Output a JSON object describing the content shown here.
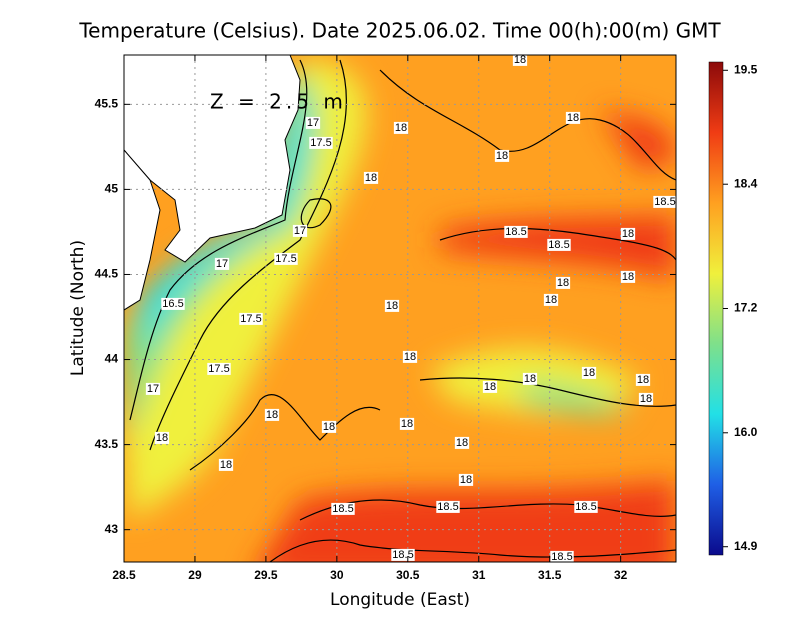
{
  "chart_data": {
    "type": "map",
    "title": "Temperature (Celsius). Date 2025.06.02. Time 00(h):00(m) GMT",
    "annotation": "Z = 2.5 m",
    "x_label": "Longitude (East)",
    "y_label": "Latitude (North)",
    "xlim": [
      28.5,
      32.39
    ],
    "ylim": [
      42.81,
      45.79
    ],
    "xticks": [
      28.5,
      29,
      29.5,
      30,
      30.5,
      31,
      31.5,
      32
    ],
    "yticks": [
      43,
      43.5,
      44,
      44.5,
      45,
      45.5
    ],
    "grid": true,
    "colorbar": {
      "lim": [
        14.82,
        19.58
      ],
      "ticks": [
        14.9,
        {
          "value": 16,
          "label": "16.0"
        },
        17.2,
        18.4,
        19.5
      ],
      "colors": [
        "#0a0a8c",
        "#1f5fe6",
        "#22e0e6",
        "#7fe08a",
        "#f0f03c",
        "#ffa020",
        "#f03c14",
        "#8c0a0a"
      ]
    },
    "contour_labels": [
      "18",
      "18",
      "18",
      "17.5",
      "18",
      "17",
      "18",
      "18.5",
      "18.5",
      "17",
      "18.5",
      "18",
      "17.5",
      "17",
      "18",
      "18",
      "18",
      "16.5",
      "17.5",
      "18",
      "18",
      "17.5",
      "18",
      "18",
      "18",
      "18",
      "17",
      "18",
      "18",
      "18",
      "18",
      "18",
      "18",
      "18",
      "18",
      "18.5",
      "18.5",
      "18.5",
      "18.5",
      "18.5"
    ]
  }
}
